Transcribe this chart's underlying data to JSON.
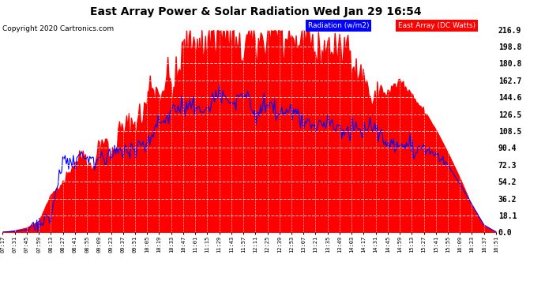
{
  "title": "East Array Power & Solar Radiation Wed Jan 29 16:54",
  "copyright": "Copyright 2020 Cartronics.com",
  "legend_radiation": "Radiation (w/m2)",
  "legend_east_array": "East Array (DC Watts)",
  "ylabel_right_values": [
    216.9,
    198.8,
    180.8,
    162.7,
    144.6,
    126.5,
    108.5,
    90.4,
    72.3,
    54.2,
    36.2,
    18.1,
    0.0
  ],
  "ymax": 216.9,
  "ymin": 0.0,
  "bg_color": "#ffffff",
  "plot_bg_color": "#ffffff",
  "grid_color": "#bbbbbb",
  "fill_color": "#ff0000",
  "line_color": "#0000ff",
  "x_tick_labels": [
    "07:17",
    "07:31",
    "07:45",
    "07:59",
    "08:13",
    "08:27",
    "08:41",
    "08:55",
    "09:09",
    "09:23",
    "09:37",
    "09:51",
    "10:05",
    "10:19",
    "10:33",
    "10:47",
    "11:01",
    "11:15",
    "11:29",
    "11:43",
    "11:57",
    "12:11",
    "12:25",
    "12:39",
    "12:53",
    "13:07",
    "13:21",
    "13:35",
    "13:49",
    "14:03",
    "14:17",
    "14:31",
    "14:45",
    "14:59",
    "15:13",
    "15:27",
    "15:41",
    "15:55",
    "16:09",
    "16:23",
    "16:37",
    "16:51"
  ],
  "east_array_data": [
    0.5,
    2.0,
    5.0,
    12.0,
    40.0,
    55.0,
    75.0,
    88.0,
    95.0,
    105.0,
    108.0,
    118.0,
    130.0,
    150.0,
    170.0,
    195.0,
    210.0,
    185.0,
    215.0,
    205.0,
    212.0,
    198.0,
    210.0,
    205.0,
    195.0,
    210.0,
    185.0,
    200.0,
    190.0,
    175.0,
    165.0,
    158.0,
    148.0,
    162.0,
    145.0,
    130.0,
    110.0,
    85.0,
    58.0,
    28.0,
    7.0,
    0.5
  ],
  "radiation_data": [
    0.3,
    1.0,
    3.0,
    7.0,
    18.0,
    72.0,
    78.0,
    80.0,
    78.0,
    82.0,
    85.0,
    90.0,
    95.0,
    118.0,
    130.0,
    135.0,
    138.0,
    128.0,
    150.0,
    140.0,
    148.0,
    128.0,
    138.0,
    125.0,
    132.0,
    120.0,
    112.0,
    118.0,
    108.0,
    110.0,
    108.0,
    112.0,
    96.0,
    94.0,
    92.0,
    90.0,
    85.0,
    72.0,
    52.0,
    30.0,
    8.0,
    0.5
  ]
}
